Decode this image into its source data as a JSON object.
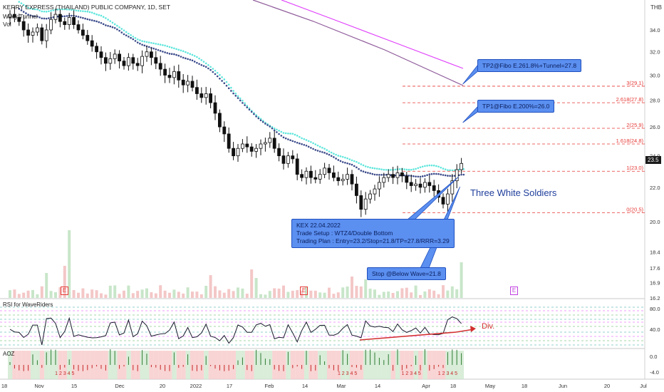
{
  "header": {
    "title": "KERRY EXPRESS (THAILAND) PUBLIC COMPANY, 1D, SET",
    "indicator1": "Wavy Tunnel",
    "indicator2": "Vol"
  },
  "price_axis": {
    "currency": "THB",
    "ticks": [
      "34.0",
      "32.0",
      "30.0",
      "28.0",
      "26.0",
      "24.0",
      "22.0",
      "20.0",
      "18.4",
      "17.6",
      "16.9",
      "16.2"
    ],
    "last_price": "23.5"
  },
  "fib_levels": [
    {
      "label": "3(29.1)",
      "value": 29.1
    },
    {
      "label": "2.618(27.8)",
      "value": 27.8
    },
    {
      "label": "2(25.9)",
      "value": 25.9
    },
    {
      "label": "1.618(24.8)",
      "value": 24.8
    },
    {
      "label": "1(23.0)",
      "value": 23.0
    },
    {
      "label": "0(20.5)",
      "value": 20.5
    }
  ],
  "annotations": {
    "tp2": "TP2@Fibo E.261.8%+Tunnel=27.8",
    "tp1": "TP1@Fibo E.200%=26.0",
    "pattern": "Three White Soldiers",
    "plan_line1": "KEX 22.04.2022",
    "plan_line2": "Trade Setup : WTZ4/Double Bottom",
    "plan_line3": "Trading Plan : Entry=23.2/Stop=21.8/TP=27.8/RRR=3.29",
    "stop": "Stop @Below Wave=21.8",
    "divergence": "Div.",
    "earnings_marker": "E"
  },
  "rsi_panel": {
    "title": "RSI for WaveRiders",
    "ticks": [
      "80.0",
      "40.0"
    ]
  },
  "aoz_panel": {
    "title": "AOZ",
    "ticks": [
      "0.0",
      "-4.0"
    ],
    "count_label": "1 2 3 4 5"
  },
  "time_axis": {
    "labels": [
      "18",
      "Nov",
      "15",
      "Dec",
      "20",
      "2022",
      "17",
      "Feb",
      "14",
      "Mar",
      "14",
      "Apr",
      "18",
      "May",
      "18",
      "Jun",
      "20",
      "Jul"
    ]
  },
  "colors": {
    "up_candle": "#ffffff",
    "down_candle": "#111111",
    "tunnel_fast": "#5ee6dc",
    "tunnel_slow": "#3b4a8a",
    "ma_magenta": "#e040fb",
    "ma_purple": "#8e5a9a",
    "fib_line": "#e53935",
    "callout": "#5b8ff0",
    "rsi_line": "#1a1a2e",
    "aoz_up": "#2e7d32",
    "aoz_down": "#c62828"
  },
  "chart_data": {
    "type": "candlestick",
    "title": "KERRY EXPRESS (THAILAND) PUBLIC COMPANY, 1D, SET",
    "ylabel": "THB",
    "ylim": [
      16.2,
      36.5
    ],
    "y_scale": "log",
    "close_series": [
      35.5,
      35.2,
      34.8,
      34.0,
      33.5,
      33.8,
      34.2,
      33.0,
      34.0,
      35.0,
      35.5,
      34.8,
      34.5,
      35.2,
      34.5,
      34.0,
      33.5,
      33.0,
      32.5,
      32.0,
      31.5,
      31.0,
      31.4,
      31.8,
      31.2,
      30.8,
      31.5,
      31.0,
      30.8,
      31.6,
      32.0,
      31.5,
      31.0,
      30.5,
      30.0,
      29.8,
      30.3,
      29.6,
      29.2,
      29.5,
      29.0,
      28.5,
      28.2,
      28.5,
      27.8,
      27.0,
      26.0,
      25.5,
      24.5,
      24.0,
      24.5,
      24.8,
      24.6,
      24.3,
      24.5,
      24.8,
      24.9,
      25.2,
      24.5,
      24.0,
      23.5,
      24.0,
      23.8,
      22.8,
      22.6,
      23.0,
      22.6,
      22.5,
      22.8,
      23.2,
      22.9,
      22.6,
      22.4,
      22.5,
      22.8,
      22.2,
      21.5,
      20.7,
      21.3,
      21.6,
      21.9,
      22.3,
      22.6,
      22.8,
      22.6,
      22.9,
      22.7,
      22.3,
      22.1,
      22.2,
      22.0,
      22.3,
      22.1,
      21.8,
      21.4,
      21.0,
      21.6,
      22.4,
      23.1,
      23.5
    ]
  }
}
